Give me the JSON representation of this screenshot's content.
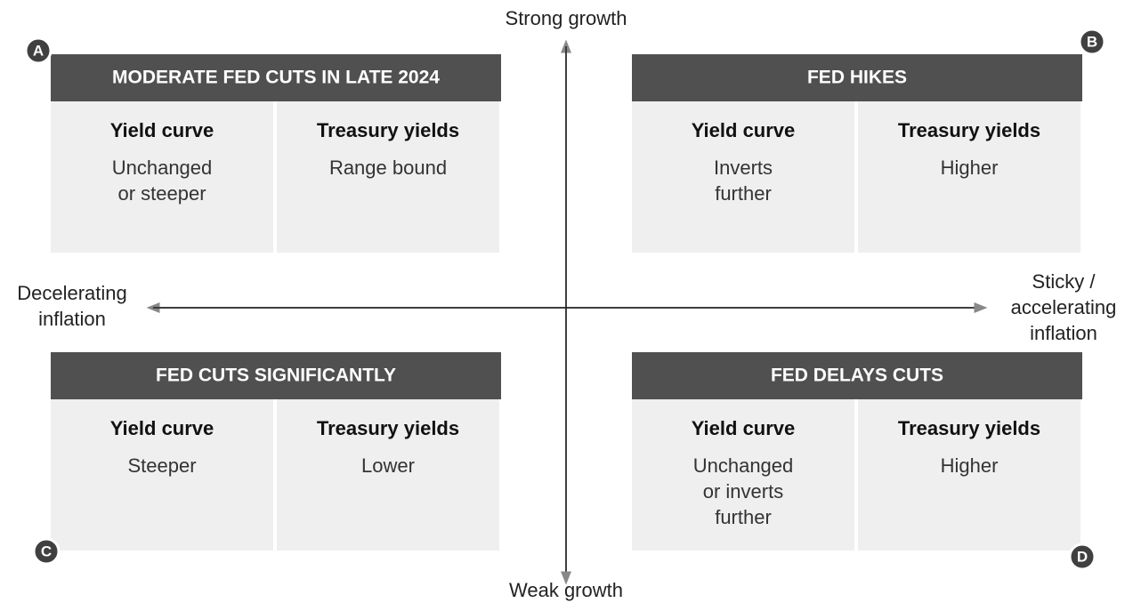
{
  "axes": {
    "top": "Strong growth",
    "bottom": "Weak growth",
    "left": [
      "Decelerating",
      "inflation"
    ],
    "right": [
      "Sticky /",
      "accelerating",
      "inflation"
    ]
  },
  "quadrants": [
    {
      "letter": "A",
      "title": "MODERATE FED CUTS IN LATE 2024",
      "columns": [
        {
          "heading": "Yield curve",
          "lines": [
            "Unchanged",
            "or steeper"
          ]
        },
        {
          "heading": "Treasury yields",
          "lines": [
            "Range bound"
          ]
        }
      ]
    },
    {
      "letter": "B",
      "title": "FED HIKES",
      "columns": [
        {
          "heading": "Yield curve",
          "lines": [
            "Inverts",
            "further"
          ]
        },
        {
          "heading": "Treasury yields",
          "lines": [
            "Higher"
          ]
        }
      ]
    },
    {
      "letter": "C",
      "title": "FED CUTS SIGNIFICANTLY",
      "columns": [
        {
          "heading": "Yield curve",
          "lines": [
            "Steeper"
          ]
        },
        {
          "heading": "Treasury yields",
          "lines": [
            "Lower"
          ]
        }
      ]
    },
    {
      "letter": "D",
      "title": "FED DELAYS CUTS",
      "columns": [
        {
          "heading": "Yield curve",
          "lines": [
            "Unchanged",
            "or inverts",
            "further"
          ]
        },
        {
          "heading": "Treasury yields",
          "lines": [
            "Higher"
          ]
        }
      ]
    }
  ]
}
